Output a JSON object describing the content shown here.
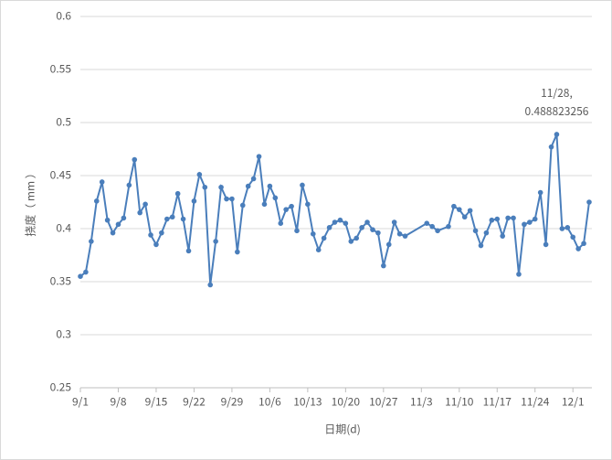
{
  "chart_data": {
    "type": "line",
    "x_label": "日期(d)",
    "y_label": "挠度（ mm ）",
    "x": [
      "9/1",
      "9/2",
      "9/3",
      "9/4",
      "9/5",
      "9/6",
      "9/7",
      "9/8",
      "9/9",
      "9/10",
      "9/11",
      "9/12",
      "9/13",
      "9/14",
      "9/15",
      "9/16",
      "9/17",
      "9/18",
      "9/19",
      "9/20",
      "9/21",
      "9/22",
      "9/23",
      "9/24",
      "9/25",
      "9/26",
      "9/27",
      "9/28",
      "9/29",
      "9/30",
      "10/1",
      "10/2",
      "10/3",
      "10/4",
      "10/5",
      "10/6",
      "10/7",
      "10/8",
      "10/9",
      "10/10",
      "10/11",
      "10/12",
      "10/13",
      "10/14",
      "10/15",
      "10/16",
      "10/17",
      "10/18",
      "10/19",
      "10/20",
      "10/21",
      "10/22",
      "10/23",
      "10/24",
      "10/25",
      "10/26",
      "10/27",
      "10/28",
      "10/29",
      "10/30",
      "10/31",
      "11/4",
      "11/5",
      "11/6",
      "11/8",
      "11/9",
      "11/10",
      "11/11",
      "11/12",
      "11/13",
      "11/14",
      "11/15",
      "11/16",
      "11/17",
      "11/18",
      "11/19",
      "11/20",
      "11/21",
      "11/22",
      "11/23",
      "11/24",
      "11/25",
      "11/26",
      "11/27",
      "11/28",
      "11/29",
      "11/30",
      "12/1",
      "12/2",
      "12/3",
      "12/4"
    ],
    "series": [
      {
        "color": "#4a7ebb",
        "values": [
          0.355,
          0.359,
          0.388,
          0.426,
          0.444,
          0.408,
          0.396,
          0.404,
          0.41,
          0.441,
          0.465,
          0.415,
          0.423,
          0.394,
          0.385,
          0.396,
          0.409,
          0.411,
          0.433,
          0.409,
          0.379,
          0.426,
          0.451,
          0.439,
          0.347,
          0.388,
          0.439,
          0.428,
          0.428,
          0.378,
          0.422,
          0.44,
          0.447,
          0.468,
          0.423,
          0.44,
          0.429,
          0.405,
          0.418,
          0.421,
          0.398,
          0.441,
          0.423,
          0.395,
          0.38,
          0.391,
          0.401,
          0.406,
          0.408,
          0.405,
          0.388,
          0.391,
          0.401,
          0.406,
          0.399,
          0.396,
          0.365,
          0.385,
          0.406,
          0.395,
          0.393,
          0.405,
          0.402,
          0.398,
          0.402,
          0.421,
          0.418,
          0.411,
          0.417,
          0.398,
          0.384,
          0.396,
          0.408,
          0.409,
          0.393,
          0.41,
          0.41,
          0.357,
          0.404,
          0.406,
          0.409,
          0.434,
          0.385,
          0.477,
          0.488823256,
          0.4,
          0.401,
          0.392,
          0.381,
          0.386,
          0.425
        ]
      }
    ],
    "xlim": [
      "9/1",
      "12/4"
    ],
    "xticks": [
      "9/1",
      "9/8",
      "9/15",
      "9/22",
      "9/29",
      "10/6",
      "10/13",
      "10/20",
      "10/27",
      "11/3",
      "11/10",
      "11/17",
      "11/24",
      "12/1"
    ],
    "ylim": [
      0.25,
      0.6
    ],
    "yticks": [
      0.25,
      0.3,
      0.35,
      0.4,
      0.45,
      0.5,
      0.55,
      0.6
    ],
    "grid": true,
    "annotations": [
      {
        "x": "11/28",
        "label": "11/28, 0.488823256"
      }
    ]
  }
}
